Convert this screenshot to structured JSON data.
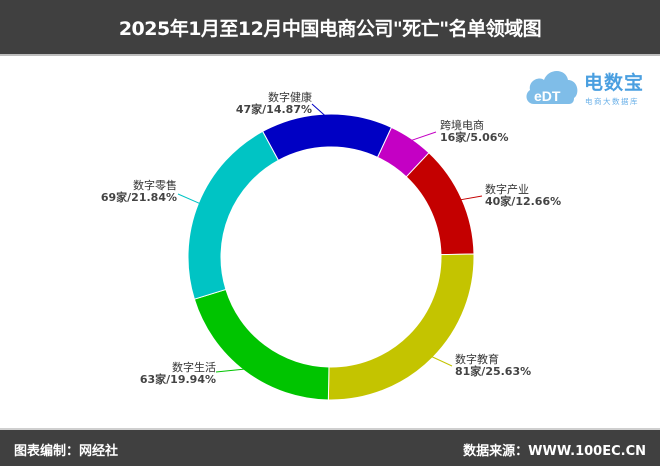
{
  "header": {
    "title": "2025年1月至12月中国电商公司\"死亡\"名单领域图"
  },
  "logo": {
    "brand": "电数宝",
    "sub": "电商大数据库",
    "mark": "eDT"
  },
  "footer": {
    "left": "图表编制：网经社",
    "right": "数据来源：WWW.100EC.CN"
  },
  "chart_data": {
    "type": "pie",
    "donut": true,
    "title": "2025年1月至12月中国电商公司\"死亡\"名单领域图",
    "slices": [
      {
        "name": "跨境电商",
        "count": 16,
        "value": 5.06,
        "label": "16家/5.06%",
        "color": "#c400c4"
      },
      {
        "name": "数字产业",
        "count": 40,
        "value": 12.66,
        "label": "40家/12.66%",
        "color": "#c40000"
      },
      {
        "name": "数字教育",
        "count": 81,
        "value": 25.63,
        "label": "81家/25.63%",
        "color": "#c4c400"
      },
      {
        "name": "数字生活",
        "count": 63,
        "value": 19.94,
        "label": "63家/19.94%",
        "color": "#00c400"
      },
      {
        "name": "数字零售",
        "count": 69,
        "value": 21.84,
        "label": "69家/21.84%",
        "color": "#00c4c4"
      },
      {
        "name": "数字健康",
        "count": 47,
        "value": 14.87,
        "label": "47家/14.87%",
        "color": "#0000c4"
      }
    ]
  }
}
